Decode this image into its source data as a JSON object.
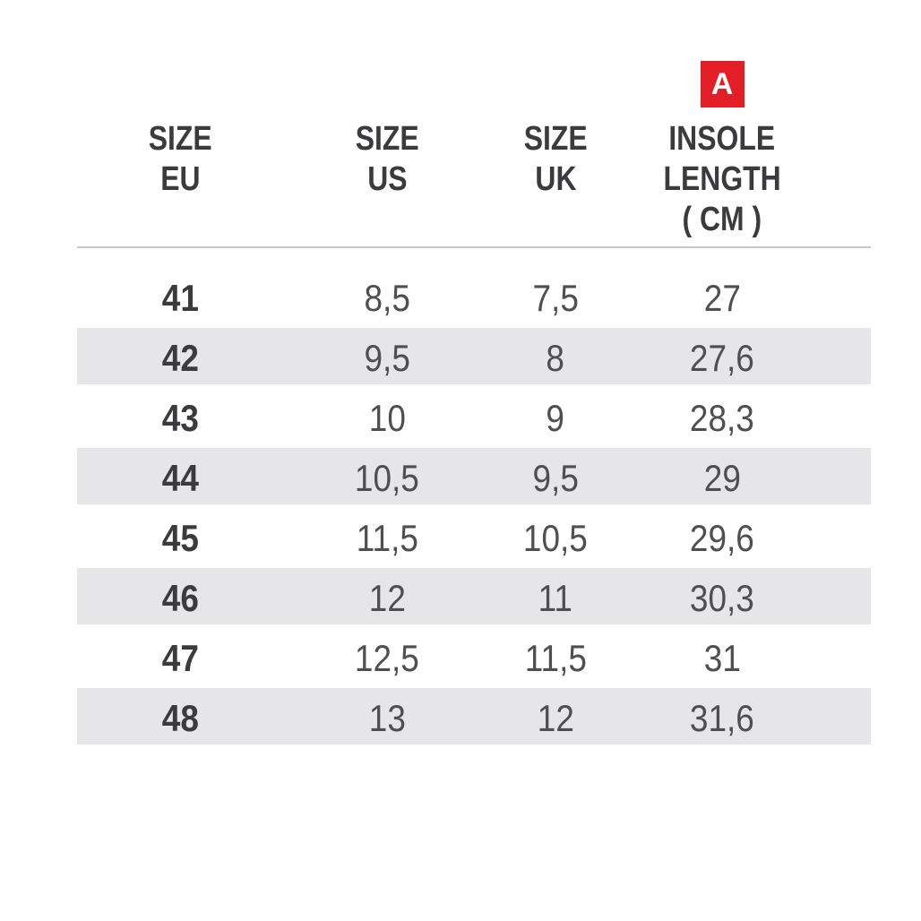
{
  "badge": {
    "label": "A",
    "background": "#e41e26",
    "text_color": "#ffffff"
  },
  "table": {
    "columns": [
      {
        "id": "size-eu",
        "label_lines": [
          "SIZE",
          "EU"
        ]
      },
      {
        "id": "size-us",
        "label_lines": [
          "SIZE",
          "US"
        ]
      },
      {
        "id": "size-uk",
        "label_lines": [
          "SIZE",
          "UK"
        ]
      },
      {
        "id": "insole-length-cm",
        "label_lines": [
          "INSOLE",
          "LENGTH",
          "( CM )"
        ]
      }
    ],
    "rows": [
      [
        "41",
        "8,5",
        "7,5",
        "27"
      ],
      [
        "42",
        "9,5",
        "8",
        "27,6"
      ],
      [
        "43",
        "10",
        "9",
        "28,3"
      ],
      [
        "44",
        "10,5",
        "9,5",
        "29"
      ],
      [
        "45",
        "11,5",
        "10,5",
        "29,6"
      ],
      [
        "46",
        "12",
        "11",
        "30,3"
      ],
      [
        "47",
        "12,5",
        "11,5",
        "31"
      ],
      [
        "48",
        "13",
        "12",
        "31,6"
      ]
    ]
  },
  "colors": {
    "header_text": "#3b3b3d",
    "row_text": "#4f4f51",
    "stripe": "#e6e6e8",
    "divider": "#c8c8c8",
    "badge_red": "#e41e26"
  },
  "chart_data": {
    "type": "table",
    "columns": [
      "SIZE EU",
      "SIZE US",
      "SIZE UK",
      "INSOLE LENGTH ( CM )"
    ],
    "rows": [
      [
        "41",
        "8,5",
        "7,5",
        "27"
      ],
      [
        "42",
        "9,5",
        "8",
        "27,6"
      ],
      [
        "43",
        "10",
        "9",
        "28,3"
      ],
      [
        "44",
        "10,5",
        "9,5",
        "29"
      ],
      [
        "45",
        "11,5",
        "10,5",
        "29,6"
      ],
      [
        "46",
        "12",
        "11",
        "30,3"
      ],
      [
        "47",
        "12,5",
        "11,5",
        "31"
      ],
      [
        "48",
        "13",
        "12",
        "31,6"
      ]
    ],
    "annotations": [
      "A badge marks the insole-length column"
    ],
    "layout": {
      "striped_rows": "even EU sizes",
      "header_divider": true
    }
  }
}
